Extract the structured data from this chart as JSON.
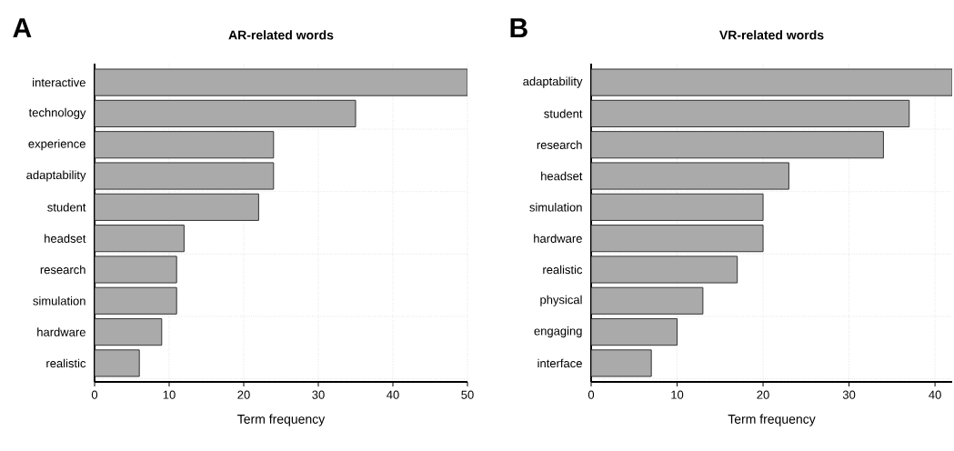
{
  "chart_data": [
    {
      "type": "bar",
      "orientation": "horizontal",
      "title": "AR-related words",
      "xlabel": "Term frequency",
      "annotations": [
        "A"
      ],
      "categories": [
        "interactive",
        "technology",
        "experience",
        "adaptability",
        "student",
        "headset",
        "research",
        "simulation",
        "hardware",
        "realistic"
      ],
      "values": [
        50,
        35,
        24,
        24,
        22,
        12,
        11,
        11,
        9,
        6
      ],
      "color": "#aaaaaa",
      "xlim": [
        0,
        50
      ],
      "xticks": [
        0,
        10,
        20,
        30,
        40,
        50
      ],
      "grid": true
    },
    {
      "type": "bar",
      "orientation": "horizontal",
      "title": "VR-related words",
      "xlabel": "Term frequency",
      "annotations": [
        "B"
      ],
      "categories": [
        "adaptability",
        "student",
        "research",
        "headset",
        "simulation",
        "hardware",
        "realistic",
        "physical",
        "engaging",
        "interface"
      ],
      "values": [
        42,
        37,
        34,
        23,
        20,
        20,
        17,
        13,
        10,
        7
      ],
      "color": "#aaaaaa",
      "xlim": [
        0,
        42
      ],
      "xticks": [
        0,
        10,
        20,
        30,
        40
      ],
      "grid": true
    }
  ]
}
